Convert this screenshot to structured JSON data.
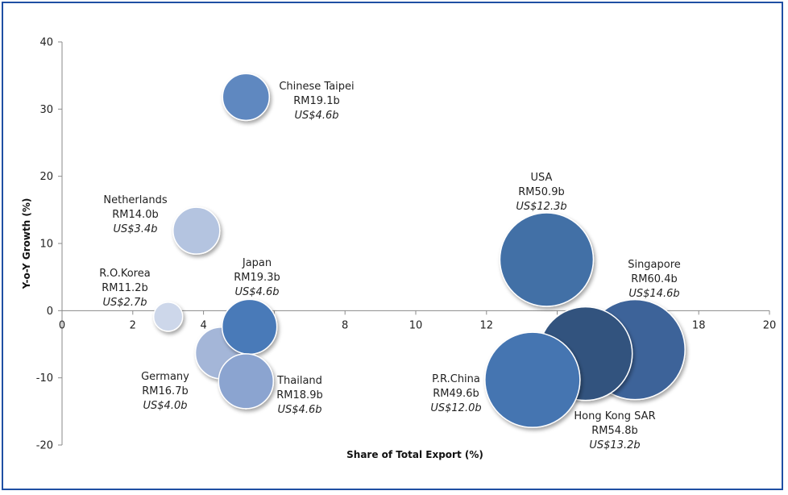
{
  "chart_data": {
    "type": "bubble",
    "title": "",
    "xlabel": "Share of Total Export (%)",
    "ylabel": "Y-o-Y Growth (%)",
    "xlim": [
      0,
      20
    ],
    "ylim": [
      -20,
      40
    ],
    "xticks": [
      "0",
      "2",
      "4",
      "6",
      "8",
      "10",
      "12",
      "14",
      "16",
      "18",
      "20"
    ],
    "yticks": [
      "40",
      "30",
      "20",
      "10",
      "0",
      "-10",
      "-20"
    ],
    "grid": false,
    "points": [
      {
        "name": "Chinese Taipei",
        "x": 5.2,
        "y": 31.8,
        "value": "RM19.1b",
        "usd": "US$4.6b",
        "color": "#5f88c0"
      },
      {
        "name": "Netherlands",
        "x": 3.8,
        "y": 11.9,
        "value": "RM14.0b",
        "usd": "US$3.4b",
        "color": "#b4c4e0"
      },
      {
        "name": "R.O.Korea",
        "x": 3.0,
        "y": -0.9,
        "value": "RM11.2b",
        "usd": "US$2.7b",
        "color": "#cdd7ea"
      },
      {
        "name": "Japan",
        "x": 5.3,
        "y": -2.4,
        "value": "RM19.3b",
        "usd": "US$4.6b",
        "color": "#4a7ab8"
      },
      {
        "name": "Thailand",
        "x": 5.2,
        "y": -10.5,
        "value": "RM18.9b",
        "usd": "US$4.6b",
        "color": "#8ba4d0"
      },
      {
        "name": "Germany",
        "x": 4.5,
        "y": -6.3,
        "value": "RM16.7b",
        "usd": "US$4.0b",
        "color": "#a4b6d8"
      },
      {
        "name": "USA",
        "x": 13.7,
        "y": 7.6,
        "value": "RM50.9b",
        "usd": "US$12.3b",
        "color": "#436fa6"
      },
      {
        "name": "Singapore",
        "x": 16.2,
        "y": -5.8,
        "value": "RM60.4b",
        "usd": "US$14.6b",
        "color": "#3e6399"
      },
      {
        "name": "Hong Kong SAR",
        "x": 14.8,
        "y": -6.4,
        "value": "RM54.8b",
        "usd": "US$13.2b",
        "color": "#30527e"
      },
      {
        "name": "P.R.China",
        "x": 13.3,
        "y": -10.3,
        "value": "RM49.6b",
        "usd": "US$12.0b",
        "color": "#4575b1"
      }
    ]
  }
}
